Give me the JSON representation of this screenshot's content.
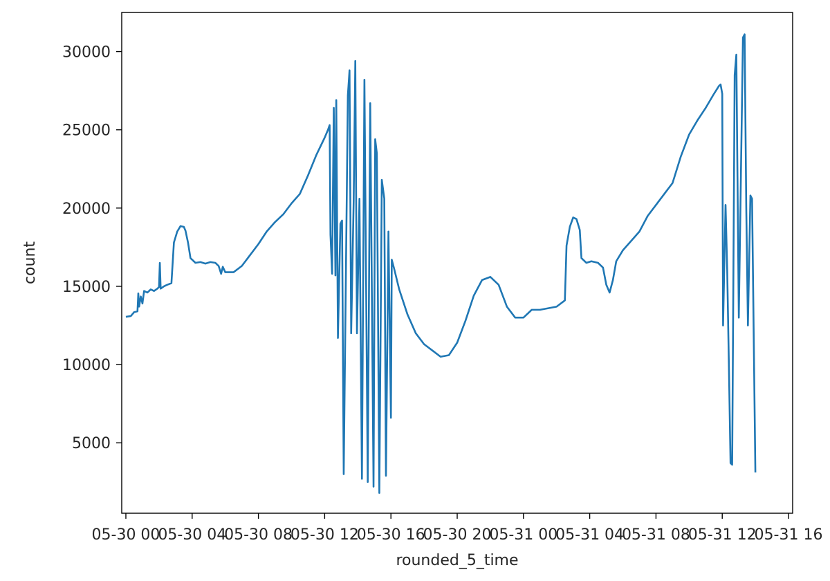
{
  "chart_data": {
    "type": "line",
    "title": "",
    "xlabel": "rounded_5_time",
    "ylabel": "count",
    "series_color": "#1f77b4",
    "grid": false,
    "legend": "none",
    "xlim": [
      -0.25,
      40.25
    ],
    "ylim": [
      500,
      32500
    ],
    "x_ticks": [
      {
        "x": 0,
        "label": "05-30 00"
      },
      {
        "x": 4,
        "label": "05-30 04"
      },
      {
        "x": 8,
        "label": "05-30 08"
      },
      {
        "x": 12,
        "label": "05-30 12"
      },
      {
        "x": 16,
        "label": "05-30 16"
      },
      {
        "x": 20,
        "label": "05-30 20"
      },
      {
        "x": 24,
        "label": "05-31 00"
      },
      {
        "x": 28,
        "label": "05-31 04"
      },
      {
        "x": 32,
        "label": "05-31 08"
      },
      {
        "x": 36,
        "label": "05-31 12"
      },
      {
        "x": 40,
        "label": "05-31 16"
      }
    ],
    "y_ticks": [
      {
        "y": 5000,
        "label": "5000"
      },
      {
        "y": 10000,
        "label": "10000"
      },
      {
        "y": 15000,
        "label": "15000"
      },
      {
        "y": 20000,
        "label": "20000"
      },
      {
        "y": 25000,
        "label": "25000"
      },
      {
        "y": 30000,
        "label": "30000"
      }
    ],
    "series": [
      {
        "points": [
          [
            0.0,
            13050
          ],
          [
            0.3,
            13100
          ],
          [
            0.5,
            13350
          ],
          [
            0.7,
            13400
          ],
          [
            0.75,
            14550
          ],
          [
            0.8,
            13700
          ],
          [
            0.9,
            14350
          ],
          [
            1.0,
            13900
          ],
          [
            1.1,
            14700
          ],
          [
            1.3,
            14600
          ],
          [
            1.5,
            14800
          ],
          [
            1.7,
            14700
          ],
          [
            1.9,
            14850
          ],
          [
            2.0,
            14950
          ],
          [
            2.05,
            16500
          ],
          [
            2.1,
            14850
          ],
          [
            2.3,
            15000
          ],
          [
            2.5,
            15100
          ],
          [
            2.75,
            15200
          ],
          [
            2.9,
            17800
          ],
          [
            3.1,
            18500
          ],
          [
            3.3,
            18850
          ],
          [
            3.5,
            18800
          ],
          [
            3.6,
            18550
          ],
          [
            3.75,
            17800
          ],
          [
            3.9,
            16800
          ],
          [
            4.2,
            16500
          ],
          [
            4.5,
            16550
          ],
          [
            4.8,
            16450
          ],
          [
            5.1,
            16550
          ],
          [
            5.4,
            16500
          ],
          [
            5.6,
            16300
          ],
          [
            5.75,
            15800
          ],
          [
            5.85,
            16250
          ],
          [
            6.0,
            15900
          ],
          [
            6.5,
            15900
          ],
          [
            7.0,
            16300
          ],
          [
            7.5,
            17000
          ],
          [
            8.0,
            17700
          ],
          [
            8.5,
            18500
          ],
          [
            9.0,
            19100
          ],
          [
            9.5,
            19600
          ],
          [
            10.0,
            20300
          ],
          [
            10.5,
            20900
          ],
          [
            11.0,
            22100
          ],
          [
            11.5,
            23400
          ],
          [
            12.0,
            24500
          ],
          [
            12.2,
            25000
          ],
          [
            12.3,
            25300
          ],
          [
            12.35,
            18300
          ],
          [
            12.45,
            15800
          ],
          [
            12.55,
            26400
          ],
          [
            12.65,
            15700
          ],
          [
            12.7,
            26900
          ],
          [
            12.8,
            11700
          ],
          [
            12.95,
            19000
          ],
          [
            13.05,
            19200
          ],
          [
            13.15,
            3000
          ],
          [
            13.4,
            27200
          ],
          [
            13.5,
            28800
          ],
          [
            13.6,
            12000
          ],
          [
            13.75,
            20400
          ],
          [
            13.85,
            29400
          ],
          [
            13.95,
            12000
          ],
          [
            14.1,
            20600
          ],
          [
            14.25,
            2700
          ],
          [
            14.4,
            28200
          ],
          [
            14.6,
            2500
          ],
          [
            14.75,
            26700
          ],
          [
            14.95,
            2200
          ],
          [
            15.05,
            24400
          ],
          [
            15.15,
            23500
          ],
          [
            15.3,
            1800
          ],
          [
            15.45,
            21800
          ],
          [
            15.6,
            20600
          ],
          [
            15.7,
            2900
          ],
          [
            15.85,
            18500
          ],
          [
            16.0,
            6600
          ],
          [
            16.05,
            16700
          ],
          [
            16.2,
            16100
          ],
          [
            16.5,
            14800
          ],
          [
            17.0,
            13200
          ],
          [
            17.5,
            12000
          ],
          [
            18.0,
            11300
          ],
          [
            18.5,
            10900
          ],
          [
            19.0,
            10500
          ],
          [
            19.5,
            10600
          ],
          [
            20.0,
            11400
          ],
          [
            20.5,
            12800
          ],
          [
            21.0,
            14400
          ],
          [
            21.5,
            15400
          ],
          [
            22.0,
            15600
          ],
          [
            22.5,
            15100
          ],
          [
            23.0,
            13700
          ],
          [
            23.5,
            13000
          ],
          [
            24.0,
            13000
          ],
          [
            24.5,
            13500
          ],
          [
            25.0,
            13500
          ],
          [
            25.5,
            13600
          ],
          [
            26.0,
            13700
          ],
          [
            26.5,
            14100
          ],
          [
            26.6,
            17600
          ],
          [
            26.8,
            18800
          ],
          [
            27.0,
            19400
          ],
          [
            27.2,
            19300
          ],
          [
            27.4,
            18600
          ],
          [
            27.5,
            16800
          ],
          [
            27.8,
            16500
          ],
          [
            28.1,
            16600
          ],
          [
            28.5,
            16500
          ],
          [
            28.8,
            16200
          ],
          [
            29.0,
            15100
          ],
          [
            29.2,
            14600
          ],
          [
            29.4,
            15400
          ],
          [
            29.6,
            16600
          ],
          [
            30.0,
            17300
          ],
          [
            30.5,
            17900
          ],
          [
            31.0,
            18500
          ],
          [
            31.5,
            19500
          ],
          [
            32.0,
            20200
          ],
          [
            32.5,
            20900
          ],
          [
            33.0,
            21600
          ],
          [
            33.5,
            23300
          ],
          [
            34.0,
            24700
          ],
          [
            34.5,
            25600
          ],
          [
            35.0,
            26400
          ],
          [
            35.5,
            27300
          ],
          [
            35.8,
            27800
          ],
          [
            35.9,
            27900
          ],
          [
            36.0,
            27300
          ],
          [
            36.05,
            12500
          ],
          [
            36.2,
            20200
          ],
          [
            36.3,
            16000
          ],
          [
            36.4,
            10000
          ],
          [
            36.5,
            3700
          ],
          [
            36.6,
            3600
          ],
          [
            36.75,
            28500
          ],
          [
            36.85,
            29800
          ],
          [
            37.0,
            13000
          ],
          [
            37.25,
            30900
          ],
          [
            37.35,
            31100
          ],
          [
            37.45,
            20000
          ],
          [
            37.55,
            12500
          ],
          [
            37.7,
            20800
          ],
          [
            37.8,
            20600
          ],
          [
            38.0,
            3100
          ]
        ]
      }
    ]
  }
}
